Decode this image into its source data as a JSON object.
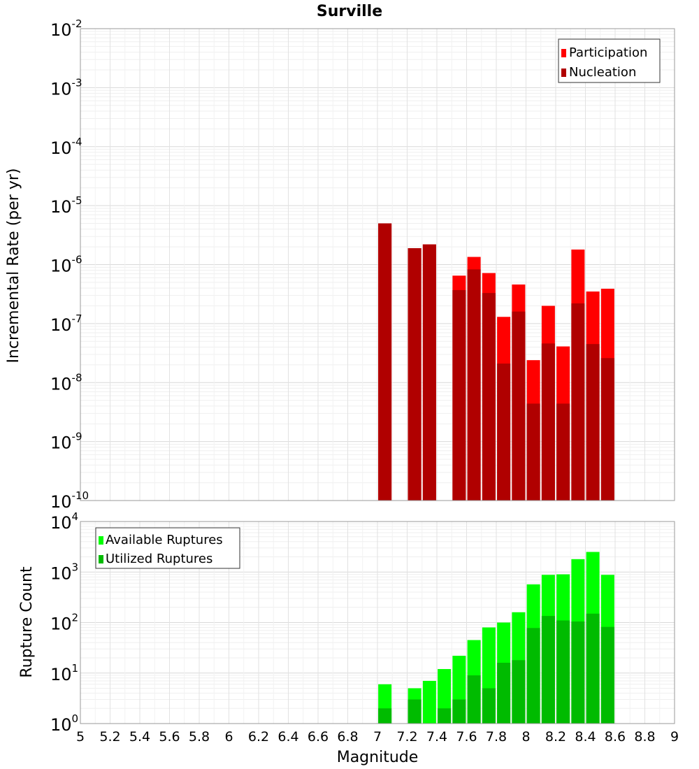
{
  "chart_data": [
    {
      "type": "bar",
      "title": "Surville",
      "ylabel": "Incremental Rate (per yr)",
      "yscale": "log",
      "ylim": [
        1e-10,
        0.01
      ],
      "y_tick_exponents": [
        "-2",
        "-3",
        "-4",
        "-5",
        "-6",
        "-7",
        "-8",
        "-9",
        "-10"
      ],
      "y_tick_base": "10",
      "xlim": [
        5,
        9
      ],
      "grid": true,
      "legend_position": "top-right",
      "bar_x": [
        7.05,
        7.25,
        7.35,
        7.55,
        7.65,
        7.75,
        7.85,
        7.95,
        8.05,
        8.15,
        8.25,
        8.35,
        8.45,
        8.55
      ],
      "series": [
        {
          "name": "Participation",
          "color": "#ff0000",
          "values": [
            5e-06,
            1.9e-06,
            2.2e-06,
            6.5e-07,
            1.35e-06,
            7.2e-07,
            1.3e-07,
            4.6e-07,
            2.4e-08,
            2e-07,
            4.1e-08,
            1.8e-06,
            3.5e-07,
            3.9e-07
          ]
        },
        {
          "name": "Nucleation",
          "color": "#b00000",
          "values": [
            5e-06,
            1.9e-06,
            2.2e-06,
            3.7e-07,
            8.3e-07,
            3.3e-07,
            2.1e-08,
            1.6e-07,
            4.4e-09,
            4.6e-08,
            4.4e-09,
            2.2e-07,
            4.5e-08,
            2.6e-08
          ]
        }
      ]
    },
    {
      "type": "bar",
      "ylabel": "Rupture Count",
      "xlabel": "Magnitude",
      "yscale": "log",
      "ylim": [
        1,
        10000
      ],
      "y_tick_exponents": [
        "4",
        "3",
        "2",
        "1",
        "0"
      ],
      "y_tick_base": "10",
      "xlim": [
        5,
        9
      ],
      "x_ticks": [
        "5",
        "5.2",
        "5.4",
        "5.6",
        "5.8",
        "6",
        "6.2",
        "6.4",
        "6.6",
        "6.8",
        "7",
        "7.2",
        "7.4",
        "7.6",
        "7.8",
        "8",
        "8.2",
        "8.4",
        "8.6",
        "8.8",
        "9"
      ],
      "grid": true,
      "legend_position": "top-left",
      "bar_x": [
        7.05,
        7.25,
        7.35,
        7.45,
        7.55,
        7.65,
        7.75,
        7.85,
        7.95,
        8.05,
        8.15,
        8.25,
        8.35,
        8.45,
        8.55
      ],
      "series": [
        {
          "name": "Available Ruptures",
          "color": "#00ff00",
          "values": [
            6,
            5,
            7,
            12,
            22,
            45,
            80,
            100,
            160,
            570,
            880,
            900,
            1800,
            2500,
            880
          ]
        },
        {
          "name": "Utilized Ruptures",
          "color": "#00bb00",
          "values": [
            2,
            3,
            1,
            2,
            3,
            9,
            5,
            16,
            18,
            78,
            135,
            110,
            105,
            150,
            82
          ]
        }
      ]
    }
  ]
}
